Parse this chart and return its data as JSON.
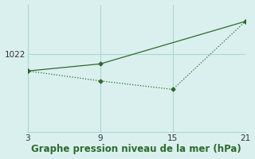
{
  "line1_x": [
    3,
    9,
    21
  ],
  "line1_y": [
    1020.8,
    1021.3,
    1024.3
  ],
  "line2_x": [
    3,
    9,
    15,
    21
  ],
  "line2_y": [
    1020.8,
    1020.1,
    1019.5,
    1024.3
  ],
  "line_color": "#2d6a2d",
  "bg_color": "#daf0ee",
  "grid_color": "#aad8d3",
  "xlabel": "Graphe pression niveau de la mer (hPa)",
  "xticks": [
    3,
    9,
    15,
    21
  ],
  "ytick_val": 1022,
  "xlim_min": 3,
  "xlim_max": 21,
  "ylim_min": 1016.5,
  "ylim_max": 1025.5,
  "tick_fontsize": 7.5,
  "xlabel_fontsize": 8.5
}
